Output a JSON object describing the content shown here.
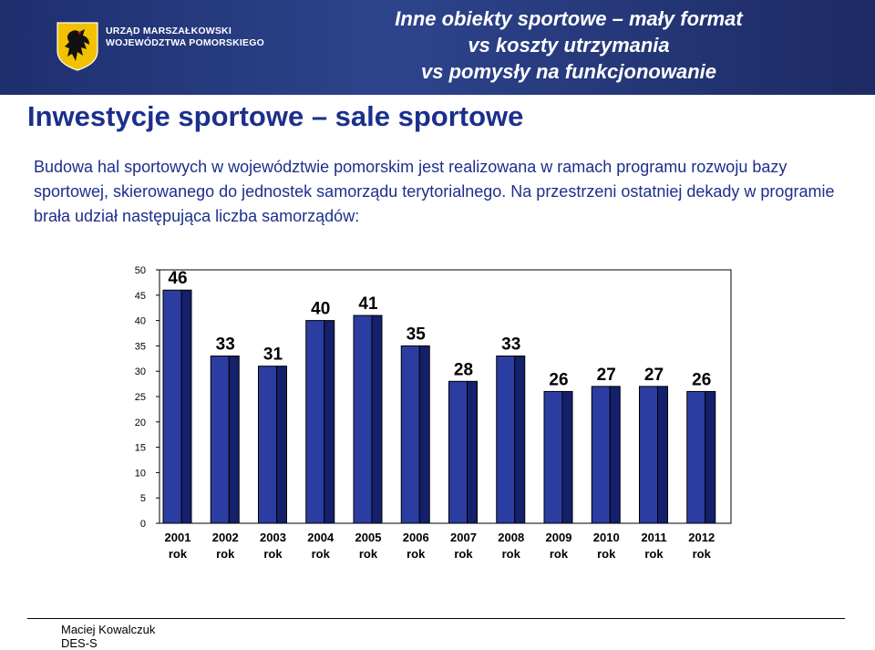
{
  "header": {
    "org_line1": "URZĄD MARSZAŁKOWSKI",
    "org_line2": "WOJEWÓDZTWA POMORSKIEGO",
    "title_lines": [
      "Inne obiekty sportowe – mały format",
      "vs koszty utrzymania",
      "vs pomysły na funkcjonowanie"
    ]
  },
  "slide_title": "Inwestycje sportowe – sale sportowe",
  "intro_text": "Budowa hal sportowych w województwie pomorskim jest realizowana w ramach programu rozwoju bazy sportowej, skierowanego do jednostek samorządu terytorialnego. Na przestrzeni ostatniej dekady w programie brała udział następująca liczba samorządów:",
  "chart_data": {
    "type": "bar",
    "categories": [
      [
        "2001",
        "rok"
      ],
      [
        "2002",
        "rok"
      ],
      [
        "2003",
        "rok"
      ],
      [
        "2004",
        "rok"
      ],
      [
        "2005",
        "rok"
      ],
      [
        "2006",
        "rok"
      ],
      [
        "2007",
        "rok"
      ],
      [
        "2008",
        "rok"
      ],
      [
        "2009",
        "rok"
      ],
      [
        "2010",
        "rok"
      ],
      [
        "2011",
        "rok"
      ],
      [
        "2012",
        "rok"
      ]
    ],
    "values": [
      46,
      33,
      31,
      40,
      41,
      35,
      28,
      33,
      26,
      27,
      27,
      26
    ],
    "ylim": [
      0,
      50
    ],
    "yticks": [
      0,
      5,
      10,
      15,
      20,
      25,
      30,
      35,
      40,
      45,
      50
    ],
    "grid": false,
    "bar_color": "#2b3da0",
    "bar_side_color": "#14206b",
    "title": "",
    "xlabel": "",
    "ylabel": ""
  },
  "footer": {
    "author": "Maciej Kowalczuk",
    "dept": "DES-S"
  }
}
